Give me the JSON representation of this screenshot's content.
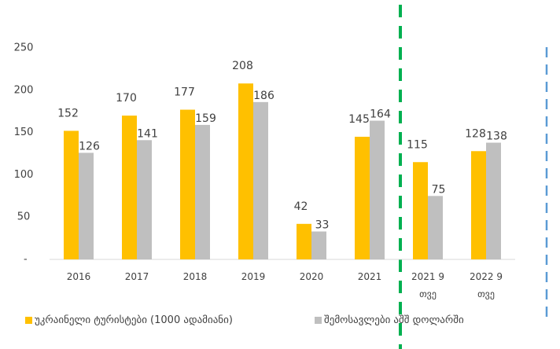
{
  "chart_data": {
    "type": "bar",
    "categories": [
      "2016",
      "2017",
      "2018",
      "2019",
      "2020",
      "2021",
      "2021 9 თვე",
      "2022 9 თვე"
    ],
    "series": [
      {
        "name": "უკრაინელი ტურისტები (1000 ადამიანი)",
        "color": "#FFC000",
        "values": [
          152,
          170,
          177,
          208,
          42,
          145,
          115,
          128
        ]
      },
      {
        "name": "შემოსავლები აშშ დოლარში",
        "color": "#BFBFBF",
        "values": [
          126,
          141,
          159,
          186,
          33,
          164,
          75,
          138
        ]
      }
    ],
    "ylim": [
      0,
      250
    ],
    "yticks": [
      {
        "value": 0,
        "label": "-"
      },
      50,
      100,
      150,
      200,
      250
    ],
    "grid": false
  }
}
